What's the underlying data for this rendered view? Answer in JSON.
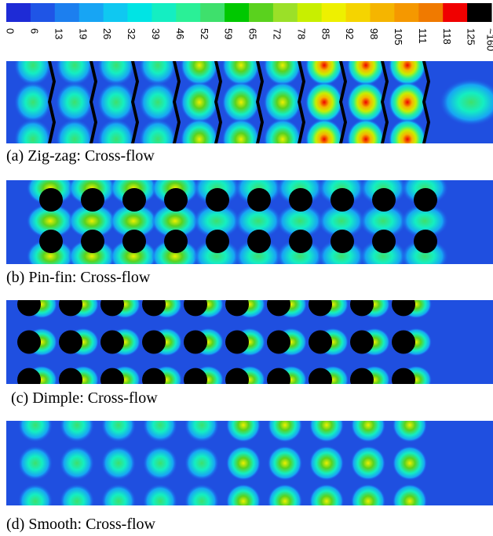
{
  "colorbar": {
    "colors": [
      "#1e2bd6",
      "#1f55e6",
      "#1c7fef",
      "#17a5f4",
      "#0fc8f1",
      "#00e4e4",
      "#14eec2",
      "#2af097",
      "#3ee06c",
      "#00c800",
      "#5ad21e",
      "#9be028",
      "#c8ef00",
      "#eef000",
      "#f5d400",
      "#f5b500",
      "#f59800",
      "#f07a00",
      "#f00000",
      "#000000"
    ],
    "labels": [
      "0",
      "6",
      "13",
      "19",
      "26",
      "32",
      "39",
      "46",
      "52",
      "59",
      "65",
      "72",
      "78",
      "85",
      "92",
      "98",
      "105",
      "111",
      "118",
      "125",
      "~160"
    ]
  },
  "panels": [
    {
      "caption": "(a) Zig-zag:  Cross-flow"
    },
    {
      "caption": "(b) Pin-fin: Cross-flow"
    },
    {
      "caption": "(c) Dimple: Cross-flow"
    },
    {
      "caption": "(d) Smooth: Cross-flow"
    }
  ]
}
